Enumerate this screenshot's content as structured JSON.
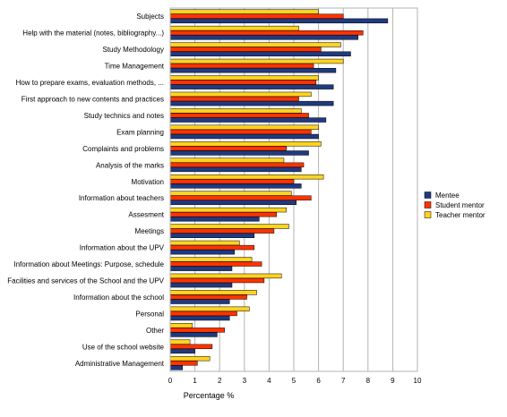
{
  "chart_data": {
    "type": "bar",
    "orientation": "horizontal",
    "xlabel": "Percentage %",
    "xlim": [
      0,
      10
    ],
    "xticks": [
      0,
      1,
      2,
      3,
      4,
      5,
      6,
      7,
      8,
      9,
      10
    ],
    "grid": "vertical",
    "legend_position": "right",
    "categories": [
      "Subjects",
      "Help with the material (notes, bibliography...)",
      "Study Methodology",
      "Time Management",
      "How to prepare exams, evaluation methods, ...",
      "First approach to new contents and practices",
      "Study technics and notes",
      "Exam planning",
      "Complaints and problems",
      "Analysis of the marks",
      "Motivation",
      "Information about teachers",
      "Assesment",
      "Meetings",
      "Information about the UPV",
      "Information about Meetings: Purpose, schedule",
      "Facilities and services of the School and the UPV",
      "Information about the school",
      "Personal",
      "Other",
      "Use of the school website",
      "Administrative Management"
    ],
    "series": [
      {
        "name": "Mentee",
        "color": "#1f3a80",
        "values": [
          8.8,
          7.6,
          7.3,
          6.7,
          6.6,
          6.6,
          6.3,
          6.0,
          5.6,
          5.3,
          5.3,
          5.1,
          3.6,
          3.4,
          2.6,
          2.5,
          2.5,
          2.4,
          2.4,
          1.9,
          1.0,
          0.5
        ]
      },
      {
        "name": "Student mentor",
        "color": "#ff3300",
        "values": [
          7.0,
          7.8,
          6.1,
          5.8,
          5.9,
          5.2,
          5.6,
          5.7,
          4.7,
          5.4,
          5.0,
          5.7,
          4.3,
          4.2,
          3.4,
          3.7,
          3.8,
          3.1,
          2.7,
          2.2,
          1.7,
          1.1
        ]
      },
      {
        "name": "Teacher mentor",
        "color": "#ffd320",
        "values": [
          6.0,
          5.2,
          6.9,
          7.0,
          6.0,
          5.7,
          5.3,
          6.0,
          6.1,
          4.6,
          6.2,
          4.9,
          4.7,
          4.8,
          2.8,
          3.3,
          4.5,
          3.5,
          3.2,
          0.9,
          0.8,
          1.6
        ]
      }
    ]
  }
}
